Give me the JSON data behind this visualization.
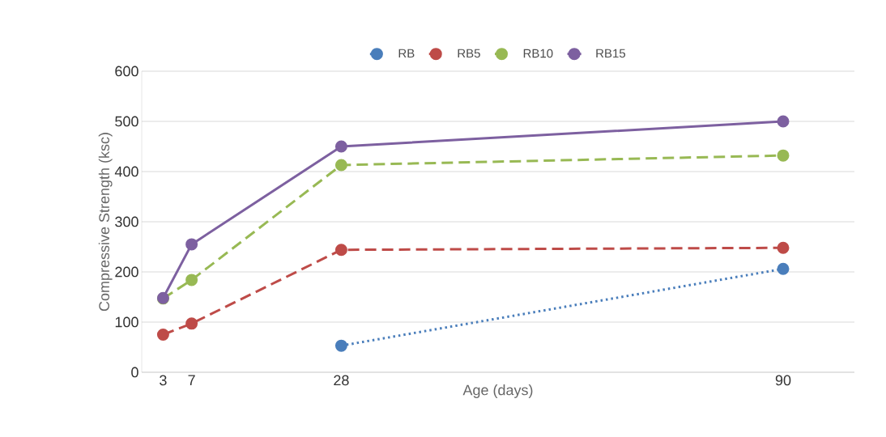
{
  "chart_data": {
    "type": "line",
    "xlabel": "Age (days)",
    "ylabel": "Compressive Strength (ksc)",
    "x": [
      3,
      7,
      28,
      90
    ],
    "series": [
      {
        "name": "RB",
        "color": "#4a7ebb",
        "line_style": "dotted",
        "values": [
          null,
          null,
          53,
          206
        ]
      },
      {
        "name": "RB5",
        "color": "#be4b48",
        "line_style": "dashed",
        "values": [
          75,
          97,
          244,
          248
        ]
      },
      {
        "name": "RB10",
        "color": "#98b954",
        "line_style": "dashed",
        "values": [
          147,
          184,
          413,
          432
        ]
      },
      {
        "name": "RB15",
        "color": "#7d60a0",
        "line_style": "solid",
        "values": [
          148,
          255,
          450,
          500
        ]
      }
    ],
    "xlim": [
      0,
      100
    ],
    "xticks": [
      3,
      7,
      28,
      90
    ],
    "ylim": [
      0,
      600
    ],
    "yticks": [
      0,
      100,
      200,
      300,
      400,
      500,
      600
    ],
    "grid": "y",
    "legend": "top",
    "marker": "circle"
  }
}
